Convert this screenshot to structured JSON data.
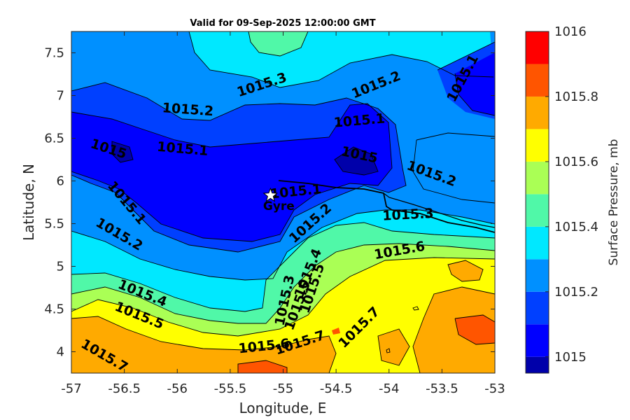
{
  "chart_data": {
    "type": "contourf",
    "title": "Valid for 09-Sep-2025 12:00:00 GMT",
    "xlabel": "Longitude, E",
    "ylabel": "Latitude, N",
    "xlim": [
      -57,
      -53
    ],
    "ylim": [
      3.75,
      7.75
    ],
    "xticks": [
      -57,
      -56.5,
      -56,
      -55.5,
      -55,
      -54.5,
      -54,
      -53.5,
      -53
    ],
    "yticks": [
      4,
      4.5,
      5,
      5.5,
      6,
      6.5,
      7,
      7.5
    ],
    "colorbar": {
      "label": "Surface Pressure, mb",
      "levels": [
        1014.95,
        1015.0,
        1015.1,
        1015.2,
        1015.3,
        1015.4,
        1015.5,
        1015.6,
        1015.7,
        1015.8,
        1015.9,
        1016.0
      ],
      "colors": [
        "#0000aa",
        "#0000ff",
        "#0040ff",
        "#0090ff",
        "#00e8ff",
        "#50f8a8",
        "#aaff55",
        "#ffff00",
        "#ffaa00",
        "#ff5500",
        "#ff0000",
        "#aa0000"
      ],
      "ticks": [
        1015,
        1015.2,
        1015.4,
        1015.6,
        1015.8,
        1016
      ]
    },
    "contour_labels": [
      {
        "text": "1015.3",
        "lon": -55.2,
        "lat": 7.12,
        "angle": -18
      },
      {
        "text": "1015.2",
        "lon": -54.12,
        "lat": 7.12,
        "angle": -22
      },
      {
        "text": "1015.1",
        "lon": -53.3,
        "lat": 7.2,
        "angle": -62
      },
      {
        "text": "1015.2",
        "lon": -55.9,
        "lat": 6.83,
        "angle": 4
      },
      {
        "text": "1015.1",
        "lon": -54.28,
        "lat": 6.7,
        "angle": -5
      },
      {
        "text": "1015",
        "lon": -56.65,
        "lat": 6.37,
        "angle": 18
      },
      {
        "text": "1015.1",
        "lon": -55.95,
        "lat": 6.37,
        "angle": 5
      },
      {
        "text": "1015",
        "lon": -54.28,
        "lat": 6.3,
        "angle": 12
      },
      {
        "text": "1015.2",
        "lon": -53.6,
        "lat": 6.08,
        "angle": 20
      },
      {
        "text": "1015.1",
        "lon": -56.48,
        "lat": 5.74,
        "angle": 50
      },
      {
        "text": "1015.1",
        "lon": -54.88,
        "lat": 5.87,
        "angle": -6
      },
      {
        "text": "1015.2",
        "lon": -54.74,
        "lat": 5.5,
        "angle": -42
      },
      {
        "text": "1015.3",
        "lon": -53.82,
        "lat": 5.6,
        "angle": -3
      },
      {
        "text": "1015.2",
        "lon": -56.55,
        "lat": 5.37,
        "angle": 30
      },
      {
        "text": "1015.6",
        "lon": -53.9,
        "lat": 5.18,
        "angle": -10
      },
      {
        "text": "1015.4",
        "lon": -54.76,
        "lat": 4.92,
        "angle": -68
      },
      {
        "text": "1015.5",
        "lon": -54.72,
        "lat": 4.74,
        "angle": -72
      },
      {
        "text": "1015.3",
        "lon": -54.98,
        "lat": 4.6,
        "angle": -78
      },
      {
        "text": "1015.4",
        "lon": -56.33,
        "lat": 4.68,
        "angle": 22
      },
      {
        "text": "1015.5",
        "lon": -56.36,
        "lat": 4.42,
        "angle": 22
      },
      {
        "text": "1015.5",
        "lon": -54.86,
        "lat": 4.54,
        "angle": -70
      },
      {
        "text": "1015.6",
        "lon": -55.18,
        "lat": 4.06,
        "angle": -6
      },
      {
        "text": "1015.7",
        "lon": -54.84,
        "lat": 4.1,
        "angle": -18
      },
      {
        "text": "1015.7",
        "lon": -54.28,
        "lat": 4.28,
        "angle": -45
      },
      {
        "text": "1015.7",
        "lon": -56.69,
        "lat": 3.95,
        "angle": 30
      }
    ],
    "marker": {
      "label": "Gyre",
      "lon": -55.12,
      "lat": 5.83,
      "symbol": "star"
    }
  }
}
